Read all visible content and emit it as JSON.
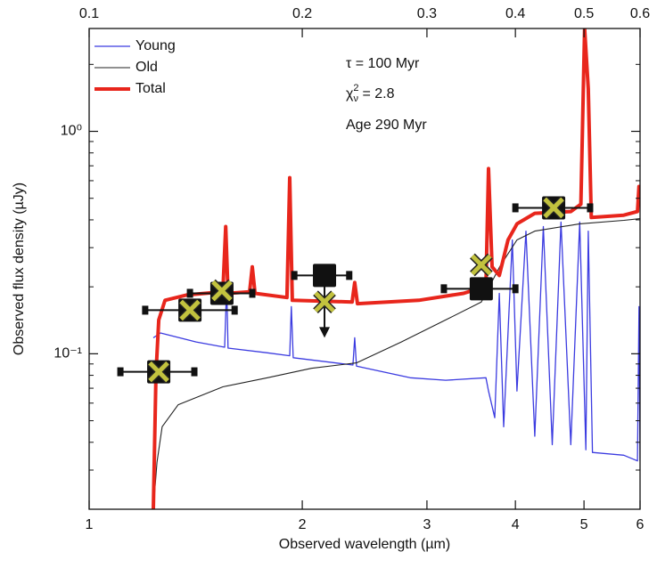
{
  "chart_data": {
    "type": "line",
    "xlabel": "Observed wavelength (µm)",
    "ylabel": "Observed flux density (µJy)",
    "xscale": "log",
    "yscale": "log",
    "xlim": [
      1,
      6
    ],
    "xticks": [
      1,
      2,
      3,
      4,
      5,
      6
    ],
    "x2lim": [
      0.1,
      0.6
    ],
    "x2ticks": [
      0.1,
      0.2,
      0.3,
      0.4,
      0.5,
      0.6
    ],
    "ylim": [
      0.02,
      2.9
    ],
    "yticks": [
      {
        "value": 0.1,
        "label": "10⁻¹"
      },
      {
        "value": 1,
        "label": "10⁰"
      }
    ],
    "yticks_minor": [
      0.02,
      0.03,
      0.04,
      0.05,
      0.06,
      0.07,
      0.08,
      0.09,
      0.2,
      0.3,
      0.4,
      0.5,
      0.6,
      0.7,
      0.8,
      0.9,
      2
    ],
    "legend": "upper left",
    "series": [
      {
        "name": "Young",
        "color": "#3b3be0",
        "width": 1.3,
        "x": [
          1.232,
          1.261,
          1.416,
          1.554,
          1.564,
          1.571,
          1.786,
          1.92,
          1.93,
          1.942,
          2.358,
          2.372,
          2.386,
          2.841,
          3.189,
          3.634,
          3.665,
          3.74,
          3.796,
          3.85,
          3.96,
          4.02,
          4.14,
          4.26,
          4.38,
          4.51,
          4.64,
          4.79,
          4.93,
          5.03,
          5.07,
          5.14,
          5.69,
          5.95,
          5.98,
          6.0
        ],
        "values": [
          0.118,
          0.124,
          0.113,
          0.107,
          0.205,
          0.106,
          0.101,
          0.098,
          0.163,
          0.096,
          0.089,
          0.118,
          0.088,
          0.078,
          0.076,
          0.078,
          0.068,
          0.0516,
          0.187,
          0.047,
          0.325,
          0.068,
          0.356,
          0.0426,
          0.373,
          0.039,
          0.391,
          0.039,
          0.391,
          0.037,
          0.356,
          0.036,
          0.035,
          0.033,
          0.163,
          0.033
        ]
      },
      {
        "name": "Old",
        "color": "#222222",
        "width": 1.1,
        "x": [
          1.232,
          1.247,
          1.268,
          1.336,
          1.545,
          1.786,
          2.06,
          2.386,
          2.76,
          3.19,
          3.58,
          3.8,
          4.02,
          4.26,
          4.93,
          5.69,
          6.0
        ],
        "values": [
          0.02,
          0.0325,
          0.047,
          0.059,
          0.071,
          0.078,
          0.086,
          0.091,
          0.113,
          0.142,
          0.171,
          0.246,
          0.325,
          0.356,
          0.384,
          0.398,
          0.405
        ]
      },
      {
        "name": "Total",
        "color": "#e8261c",
        "width": 4,
        "x": [
          1.232,
          1.243,
          1.254,
          1.28,
          1.376,
          1.545,
          1.559,
          1.571,
          1.685,
          1.7,
          1.715,
          1.903,
          1.92,
          1.936,
          2.352,
          2.372,
          2.393,
          2.922,
          3.379,
          3.634,
          3.665,
          3.708,
          3.796,
          3.906,
          4.021,
          4.26,
          4.79,
          4.95,
          5.01,
          5.07,
          5.12,
          5.69,
          5.95,
          5.98,
          6.0
        ],
        "values": [
          0.02,
          0.082,
          0.142,
          0.174,
          0.184,
          0.19,
          0.373,
          0.187,
          0.19,
          0.246,
          0.187,
          0.179,
          0.619,
          0.174,
          0.171,
          0.209,
          0.168,
          0.174,
          0.187,
          0.201,
          0.68,
          0.246,
          0.225,
          0.325,
          0.384,
          0.428,
          0.436,
          0.47,
          2.9,
          1.556,
          0.41,
          0.42,
          0.436,
          0.565,
          0.49
        ]
      }
    ],
    "observed": {
      "color": "#111111",
      "x": [
        1.254,
        1.388,
        1.54,
        2.15,
        3.58,
        4.53
      ],
      "x_low": [
        1.107,
        1.2,
        1.388,
        1.949,
        3.17,
        4.0
      ],
      "x_high": [
        1.408,
        1.605,
        1.7,
        2.33,
        4.0,
        5.1
      ],
      "values": [
        0.083,
        0.157,
        0.187,
        0.225,
        0.196,
        0.453
      ],
      "upper_limit": [
        false,
        false,
        false,
        true,
        false,
        false
      ]
    },
    "model_points": {
      "color": "#c2c23e",
      "x": [
        1.254,
        1.388,
        1.54,
        2.15,
        3.58,
        4.53
      ],
      "values": [
        0.083,
        0.157,
        0.192,
        0.171,
        0.251,
        0.453
      ]
    },
    "annotations": [
      {
        "text": "τ = 100 Myr"
      },
      {
        "symbol": "χ",
        "subscript": "ν",
        "superscript": "2",
        "text": " = 2.8"
      },
      {
        "text": "Age 290 Myr"
      }
    ]
  }
}
